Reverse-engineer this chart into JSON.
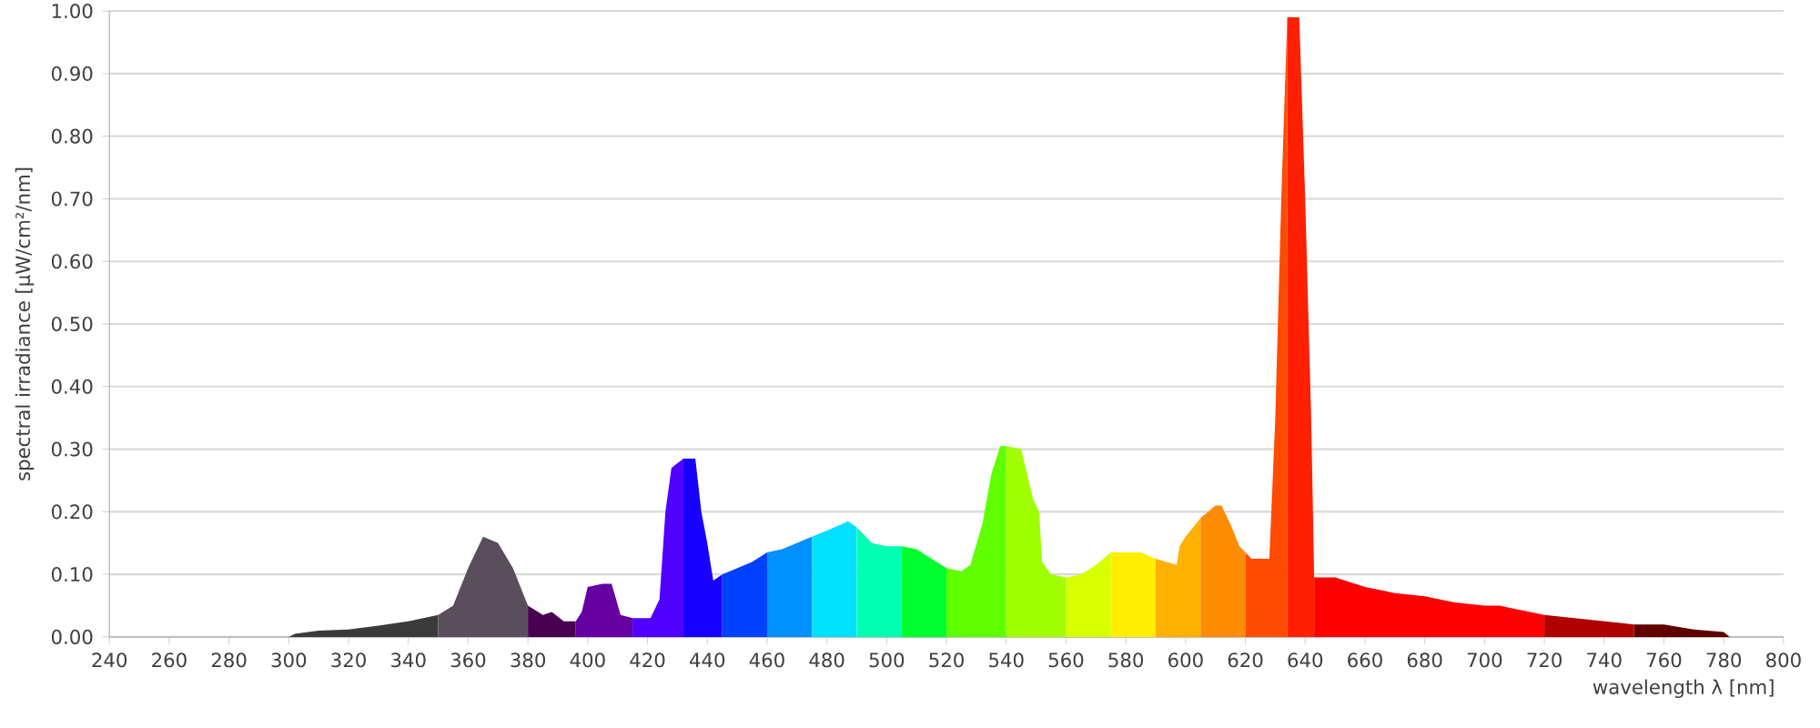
{
  "chart_data": {
    "type": "area",
    "xlabel": "wavelength λ [nm]",
    "ylabel": "spectral irradiance [µW/cm²/nm]",
    "xlim": [
      240,
      800
    ],
    "ylim": [
      0,
      1
    ],
    "xticks": [
      240,
      260,
      280,
      300,
      320,
      340,
      360,
      380,
      400,
      420,
      440,
      460,
      480,
      500,
      520,
      540,
      560,
      580,
      600,
      620,
      640,
      660,
      680,
      700,
      720,
      740,
      760,
      780,
      800
    ],
    "yticks": [
      {
        "value": 0,
        "label": "0.00"
      },
      {
        "value": 0.1,
        "label": "0.10"
      },
      {
        "value": 0.2,
        "label": "0.20"
      },
      {
        "value": 0.3,
        "label": "0.30"
      },
      {
        "value": 0.4,
        "label": "0.40"
      },
      {
        "value": 0.5,
        "label": "0.50"
      },
      {
        "value": 0.6,
        "label": "0.60"
      },
      {
        "value": 0.7,
        "label": "0.70"
      },
      {
        "value": 0.8,
        "label": "0.80"
      },
      {
        "value": 0.9,
        "label": "0.90"
      },
      {
        "value": 1,
        "label": "1.00"
      }
    ],
    "grid": "y",
    "series": [
      {
        "color": "#3a3a3a",
        "x": [
          300,
          302,
          310,
          320,
          330,
          340,
          350
        ],
        "values": [
          0,
          0.005,
          0.01,
          0.012,
          0.018,
          0.025,
          0.035
        ]
      },
      {
        "color": "#5a4e5c",
        "x": [
          350,
          355,
          360,
          365,
          370,
          375,
          380
        ],
        "values": [
          0.035,
          0.05,
          0.11,
          0.16,
          0.15,
          0.11,
          0.05
        ]
      },
      {
        "color": "#4a0050",
        "x": [
          380,
          385,
          388,
          392,
          396
        ],
        "values": [
          0.05,
          0.035,
          0.04,
          0.025,
          0.025
        ]
      },
      {
        "color": "#6600a0",
        "x": [
          396,
          398,
          400,
          405,
          408,
          411,
          415
        ],
        "values": [
          0.025,
          0.04,
          0.08,
          0.085,
          0.085,
          0.035,
          0.03
        ]
      },
      {
        "color": "#5000ff",
        "x": [
          415,
          421,
          424,
          426,
          428,
          432
        ],
        "values": [
          0.03,
          0.03,
          0.06,
          0.2,
          0.27,
          0.285
        ]
      },
      {
        "color": "#1800ff",
        "x": [
          432,
          436,
          438,
          440,
          442,
          445
        ],
        "values": [
          0.285,
          0.285,
          0.2,
          0.15,
          0.09,
          0.1
        ]
      },
      {
        "color": "#0040ff",
        "x": [
          445,
          450,
          455,
          460
        ],
        "values": [
          0.1,
          0.11,
          0.12,
          0.135
        ]
      },
      {
        "color": "#0090ff",
        "x": [
          460,
          465,
          470,
          475
        ],
        "values": [
          0.135,
          0.14,
          0.15,
          0.16
        ]
      },
      {
        "color": "#00e0ff",
        "x": [
          475,
          480,
          485,
          487,
          490
        ],
        "values": [
          0.16,
          0.17,
          0.18,
          0.185,
          0.175
        ]
      },
      {
        "color": "#00ffb0",
        "x": [
          490,
          495,
          500,
          505
        ],
        "values": [
          0.175,
          0.15,
          0.145,
          0.145
        ]
      },
      {
        "color": "#00ff30",
        "x": [
          505,
          510,
          515,
          520
        ],
        "values": [
          0.145,
          0.14,
          0.125,
          0.11
        ]
      },
      {
        "color": "#60ff00",
        "x": [
          520,
          525,
          528,
          532,
          535,
          538,
          540
        ],
        "values": [
          0.11,
          0.105,
          0.115,
          0.18,
          0.26,
          0.305,
          0.305
        ]
      },
      {
        "color": "#a0ff00",
        "x": [
          540,
          545,
          549,
          551,
          552,
          555,
          560
        ],
        "values": [
          0.305,
          0.3,
          0.22,
          0.2,
          0.12,
          0.1,
          0.095
        ]
      },
      {
        "color": "#d8ff00",
        "x": [
          560,
          565,
          570,
          575
        ],
        "values": [
          0.095,
          0.1,
          0.115,
          0.135
        ]
      },
      {
        "color": "#ffee00",
        "x": [
          575,
          580,
          585,
          590
        ],
        "values": [
          0.135,
          0.135,
          0.135,
          0.125
        ]
      },
      {
        "color": "#ffb000",
        "x": [
          590,
          597,
          598,
          600,
          605
        ],
        "values": [
          0.125,
          0.115,
          0.145,
          0.16,
          0.19
        ]
      },
      {
        "color": "#ff8c00",
        "x": [
          605,
          610,
          612,
          615,
          618,
          620
        ],
        "values": [
          0.19,
          0.21,
          0.21,
          0.18,
          0.145,
          0.135
        ]
      },
      {
        "color": "#ff4a00",
        "x": [
          620,
          622,
          628,
          630,
          632,
          634
        ],
        "values": [
          0.135,
          0.125,
          0.125,
          0.35,
          0.7,
          0.99
        ]
      },
      {
        "color": "#ff2000",
        "x": [
          634,
          638,
          640,
          642,
          643
        ],
        "values": [
          0.99,
          0.99,
          0.7,
          0.35,
          0.095
        ]
      },
      {
        "color": "#ff0000",
        "x": [
          643,
          650,
          660,
          670,
          680,
          690,
          700,
          705,
          710,
          720
        ],
        "values": [
          0.095,
          0.095,
          0.08,
          0.07,
          0.065,
          0.055,
          0.05,
          0.05,
          0.045,
          0.035
        ]
      },
      {
        "color": "#b00000",
        "x": [
          720,
          730,
          740,
          750
        ],
        "values": [
          0.035,
          0.03,
          0.025,
          0.02
        ]
      },
      {
        "color": "#600000",
        "x": [
          750,
          760,
          770,
          780,
          782
        ],
        "values": [
          0.02,
          0.02,
          0.012,
          0.008,
          0
        ]
      }
    ]
  }
}
